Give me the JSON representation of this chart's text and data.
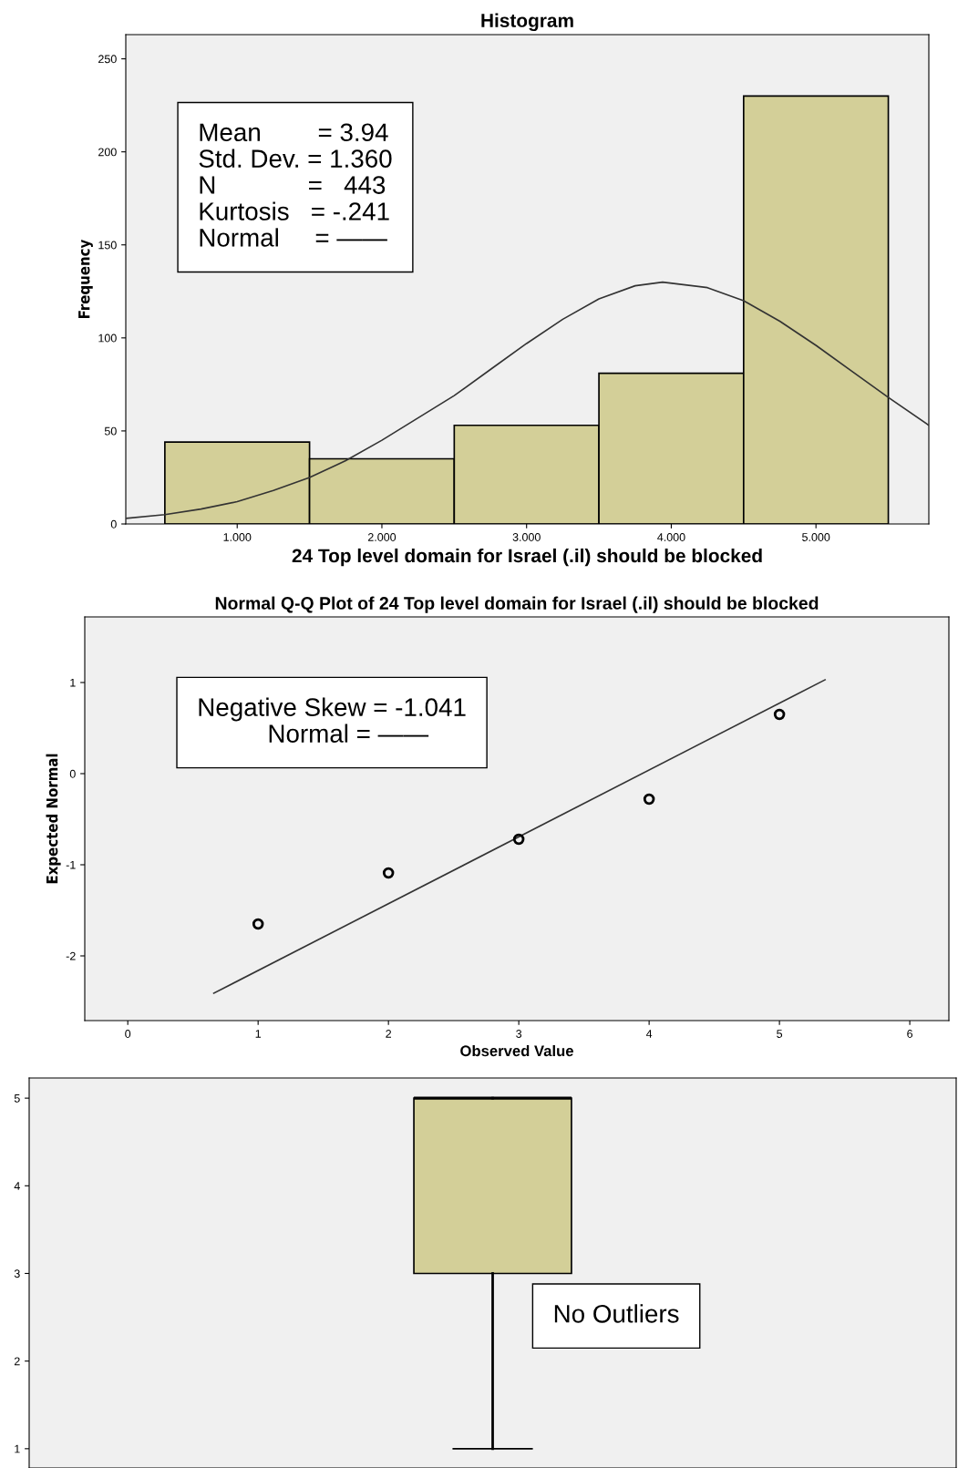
{
  "chart_data": [
    {
      "type": "histogram",
      "title": "Histogram",
      "xlabel": "24 Top level domain for Israel (.il) should be blocked",
      "ylabel": "Frequency",
      "series": [
        {
          "type": "histogram",
          "bins": [
            0.5,
            1.5,
            2.5,
            3.5,
            4.5,
            5.5
          ],
          "values": [
            44,
            35,
            53,
            81,
            230
          ],
          "color": "#d3cf98"
        },
        {
          "type": "line",
          "color": "#333333",
          "x": [
            0.23,
            0.5,
            0.75,
            1.0,
            1.25,
            1.5,
            1.75,
            2.0,
            2.25,
            2.5,
            2.75,
            3.0,
            3.25,
            3.5,
            3.75,
            3.94,
            4.25,
            4.5,
            4.75,
            5.0,
            5.25,
            5.5,
            5.78
          ],
          "values": [
            3,
            5,
            8,
            12,
            18,
            25,
            34,
            45,
            57,
            69,
            83,
            97,
            110,
            121,
            128,
            130,
            127,
            120,
            109,
            96,
            82,
            68,
            53
          ]
        }
      ],
      "xlim": [
        0.23,
        5.78
      ],
      "ylim": [
        0,
        263
      ],
      "xticks": [
        {
          "value": 1,
          "label": "1.000"
        },
        {
          "value": 2,
          "label": "2.000"
        },
        {
          "value": 3,
          "label": "3.000"
        },
        {
          "value": 4,
          "label": "4.000"
        },
        {
          "value": 5,
          "label": "5.000"
        }
      ],
      "yticks": [
        0,
        50,
        100,
        150,
        200,
        250
      ],
      "annotations": [
        "Mean        = 3.94\nStd. Dev. = 1.360\nN             =   443\nKurtosis   = -.241\nNormal     = ——"
      ]
    },
    {
      "type": "scatter",
      "title": "Normal Q-Q Plot of 24 Top level domain for Israel (.il) should be blocked",
      "xlabel": "Observed Value",
      "ylabel": "Expected Normal",
      "series": [
        {
          "type": "scatter",
          "color": "#000000",
          "marker": "circle",
          "x": [
            1,
            2,
            3,
            4,
            5
          ],
          "values": [
            -1.65,
            -1.09,
            -0.72,
            -0.28,
            0.65
          ]
        },
        {
          "type": "line",
          "color": "#333333",
          "x": [
            0.66,
            5.35
          ],
          "values": [
            -2.41,
            1.03
          ]
        }
      ],
      "xlim": [
        -0.33,
        6.3
      ],
      "ylim": [
        -2.71,
        1.72
      ],
      "xticks": [
        0,
        1,
        2,
        3,
        4,
        5,
        6
      ],
      "yticks": [
        -2,
        -1,
        0,
        1
      ],
      "annotations": [
        "Negative Skew = -1.041\n          Normal = ——"
      ]
    },
    {
      "type": "box",
      "categories": [
        null
      ],
      "color": "#d3cf98",
      "boxes": [
        {
          "low": 1,
          "q1": 3,
          "median": 5,
          "q3": 5,
          "high": 5
        }
      ],
      "ylim": [
        0.78,
        5.23
      ],
      "yticks": [
        1,
        2,
        3,
        4,
        5
      ],
      "annotations": [
        "No Outliers"
      ]
    }
  ]
}
